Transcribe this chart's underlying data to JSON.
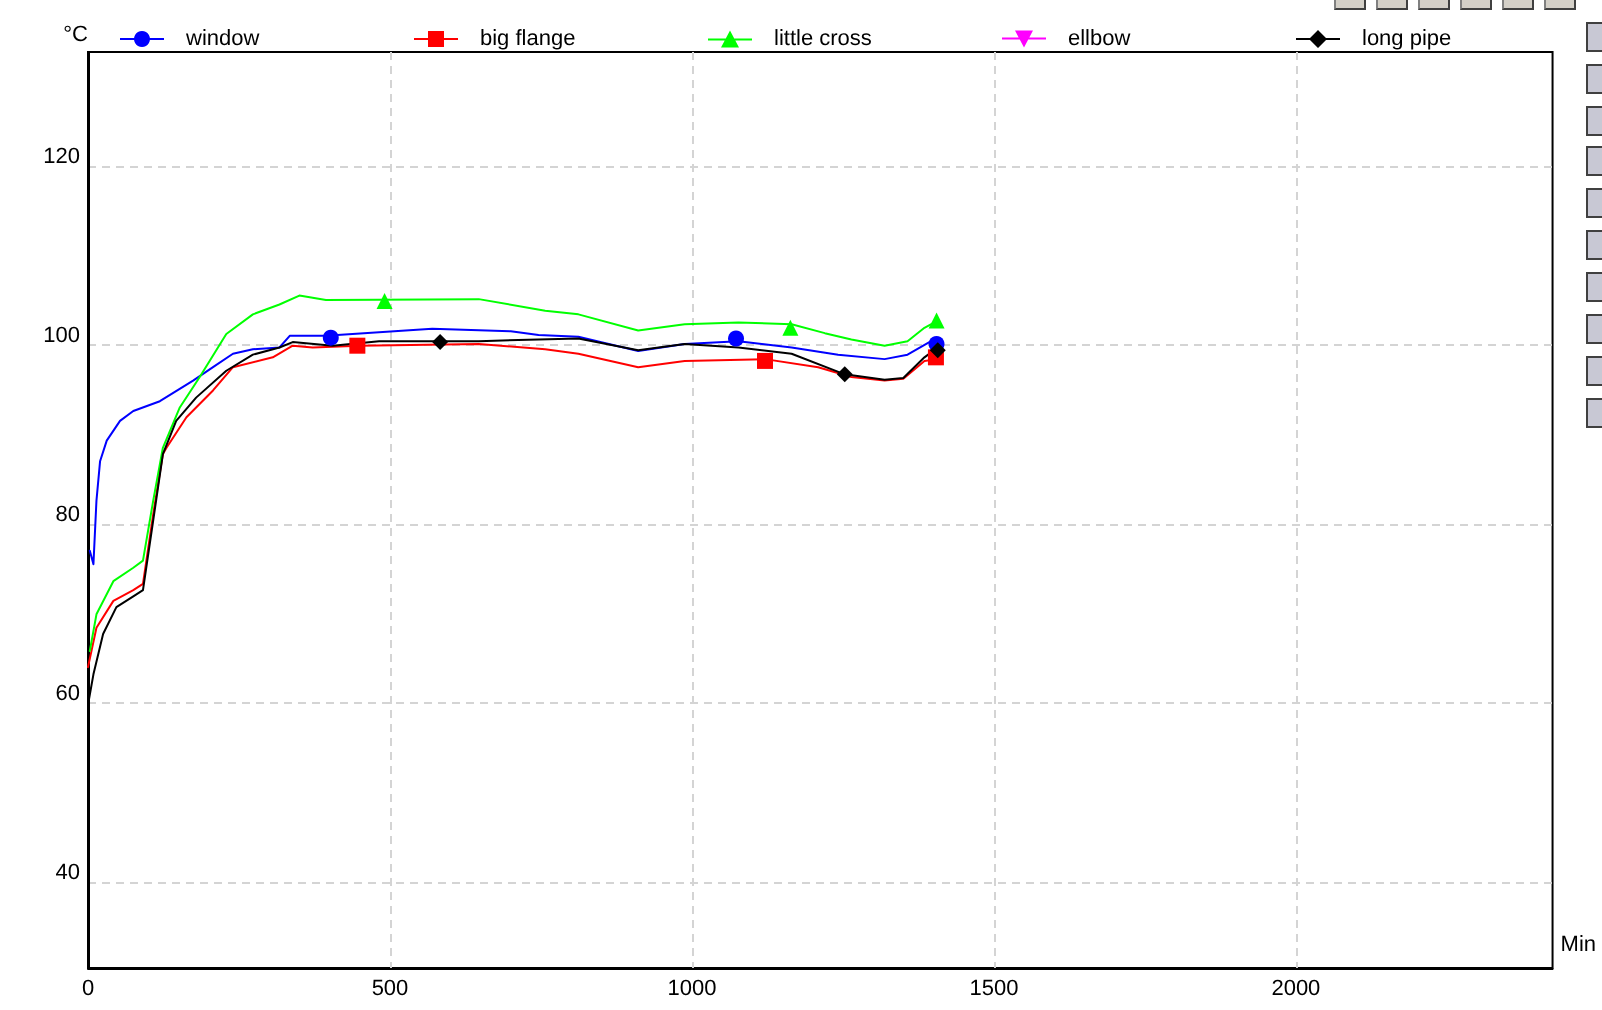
{
  "chart_data": {
    "type": "line",
    "xlabel": "Min",
    "ylabel": "°C",
    "xlim": [
      0,
      2425
    ],
    "xticks": [
      0,
      500,
      1000,
      1500,
      2000
    ],
    "ylim": [
      30.4,
      132.7
    ],
    "yticks": [
      40,
      60,
      80,
      100,
      120
    ],
    "grid": true,
    "legend": "top",
    "line_style": "solid",
    "series": [
      {
        "name": "window",
        "color": "#0000ff",
        "x": [
          3,
          9,
          14,
          20,
          31,
          53,
          75,
          119,
          174,
          207,
          240,
          273,
          317,
          334,
          394,
          570,
          700,
          746,
          812,
          911,
          988,
          1077,
          1165,
          1242,
          1319,
          1357,
          1396,
          1407
        ],
        "values": [
          77,
          75.5,
          82.6,
          87,
          89.3,
          91.5,
          92.6,
          93.7,
          96,
          97.5,
          99,
          99.5,
          99.7,
          101,
          101,
          101.8,
          101.5,
          101.1,
          100.9,
          99.3,
          100.1,
          100.4,
          99.7,
          98.9,
          98.4,
          98.9,
          100.4,
          100.1
        ]
      },
      {
        "name": "big flange",
        "color": "#ff0000",
        "x": [
          0,
          14,
          42,
          75,
          91,
          108,
          124,
          130,
          163,
          207,
          240,
          306,
          339,
          372,
          449,
          647,
          757,
          812,
          911,
          988,
          1121,
          1209,
          1264,
          1319,
          1350,
          1385,
          1407
        ],
        "values": [
          64,
          68.4,
          71.4,
          72.6,
          73.3,
          81.1,
          87.8,
          88.5,
          91.9,
          94.9,
          97.5,
          98.6,
          99.9,
          99.7,
          99.9,
          100.1,
          99.5,
          99,
          97.5,
          98.2,
          98.4,
          97.5,
          96.4,
          96,
          96.2,
          98.2,
          98.4
        ]
      },
      {
        "name": "little cross",
        "color": "#00ff00",
        "x": [
          3,
          14,
          42,
          75,
          91,
          108,
          124,
          152,
          185,
          229,
          273,
          317,
          350,
          394,
          647,
          757,
          812,
          911,
          988,
          1077,
          1165,
          1220,
          1264,
          1319,
          1357,
          1385,
          1407
        ],
        "values": [
          65.8,
          69.9,
          73.6,
          75.1,
          75.9,
          82.6,
          88.5,
          93,
          96.4,
          101.2,
          103.4,
          104.5,
          105.5,
          105,
          105.1,
          103.8,
          103.4,
          101.6,
          102.3,
          102.5,
          102.3,
          101.3,
          100.6,
          99.9,
          100.4,
          101.9,
          102.7
        ]
      },
      {
        "name": "ellbow",
        "color": "#ff00ff",
        "marker": "triangle-down"
      },
      {
        "name": "long pipe",
        "color": "#000000",
        "x": [
          0,
          9,
          25,
          47,
          75,
          91,
          108,
          124,
          146,
          179,
          229,
          273,
          317,
          339,
          405,
          482,
          647,
          746,
          812,
          911,
          988,
          1077,
          1165,
          1253,
          1319,
          1350,
          1385,
          1407
        ],
        "values": [
          59.8,
          63.2,
          67.7,
          70.7,
          71.9,
          72.6,
          80.4,
          87.8,
          91.5,
          94.1,
          97.1,
          98.9,
          99.7,
          100.3,
          99.9,
          100.4,
          100.4,
          100.6,
          100.7,
          99.4,
          100.1,
          99.7,
          99,
          96.7,
          96.1,
          96.3,
          98.6,
          99.7
        ]
      },
      {
        "type": "scatter",
        "color": "#0000ff",
        "marker": "circle",
        "x": [
          402,
          1073,
          1405
        ],
        "values": [
          100.8,
          100.7,
          100.1
        ]
      },
      {
        "type": "scatter",
        "color": "#ff0000",
        "marker": "square",
        "x": [
          446,
          1121,
          1404
        ],
        "values": [
          99.9,
          98.2,
          98.6
        ]
      },
      {
        "type": "scatter",
        "color": "#00ff00",
        "marker": "triangle",
        "x": [
          491,
          1163,
          1405
        ],
        "values": [
          104.9,
          101.9,
          102.7
        ]
      },
      {
        "type": "scatter",
        "color": "#000000",
        "marker": "diamond",
        "x": [
          583,
          1253,
          1407
        ],
        "values": [
          100.3,
          96.7,
          99.4
        ]
      }
    ]
  }
}
